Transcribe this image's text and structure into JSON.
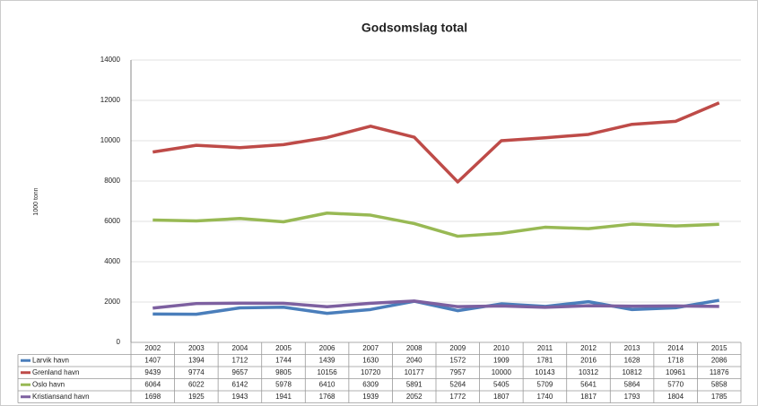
{
  "chart_data": {
    "type": "line",
    "title": "Godsomslag total",
    "y_label": "1000 tonn",
    "categories": [
      "2002",
      "2003",
      "2004",
      "2005",
      "2006",
      "2007",
      "2008",
      "2009",
      "2010",
      "2011",
      "2012",
      "2013",
      "2014",
      "2015"
    ],
    "series": [
      {
        "name": "Larvik havn",
        "color": "#4a7ebb",
        "values": [
          1407,
          1394,
          1712,
          1744,
          1439,
          1630,
          2040,
          1572,
          1909,
          1781,
          2016,
          1628,
          1718,
          2086
        ]
      },
      {
        "name": "Grenland havn",
        "color": "#be4b48",
        "values": [
          9439,
          9774,
          9657,
          9805,
          10156,
          10720,
          10177,
          7957,
          10000,
          10143,
          10312,
          10812,
          10961,
          11876
        ]
      },
      {
        "name": "Oslo havn",
        "color": "#98b954",
        "values": [
          6064,
          6022,
          6142,
          5978,
          6410,
          6309,
          5891,
          5264,
          5405,
          5709,
          5641,
          5864,
          5770,
          5858
        ]
      },
      {
        "name": "Kristiansand havn",
        "color": "#7d60a0",
        "values": [
          1698,
          1925,
          1943,
          1941,
          1768,
          1939,
          2052,
          1772,
          1807,
          1740,
          1817,
          1793,
          1804,
          1785
        ]
      }
    ],
    "ylim": [
      0,
      14000
    ],
    "yticks": [
      0,
      2000,
      4000,
      6000,
      8000,
      10000,
      12000,
      14000
    ],
    "grid": true,
    "data_table": true
  }
}
